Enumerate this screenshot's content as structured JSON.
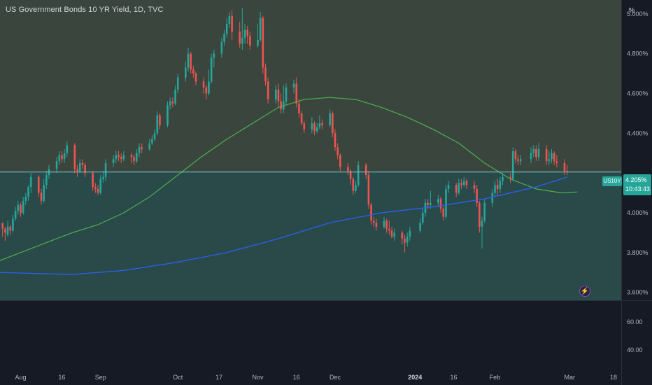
{
  "title": "US Government Bonds 10 YR Yield, 1D, TVC",
  "unit_button": "%",
  "symbol_label": "US10Y",
  "last_price_label": "4.205%",
  "countdown": "10:43:43",
  "colors": {
    "up": "#26a69a",
    "down": "#ef5350",
    "ma_short": "#4caf50",
    "ma_long": "#2962ff",
    "price_line": "#7bc7d4",
    "upper_zone": "#3a463d",
    "lower_zone": "#2a4a4a"
  },
  "icons": {
    "lightning": "lightning-icon"
  },
  "chart_data": [
    {
      "type": "candlestick",
      "title": "US Government Bonds 10 YR Yield, 1D, TVC",
      "y_ticks": [
        "5.000%",
        "4.800%",
        "4.600%",
        "4.400%",
        "4.000%",
        "3.800%",
        "3.600%"
      ],
      "ylim": [
        3.56,
        5.07
      ],
      "x_ticks": [
        "Aug",
        "16",
        "Sep",
        "Oct",
        "17",
        "Nov",
        "16",
        "Dec",
        "2024",
        "16",
        "Feb",
        "Mar",
        "18"
      ],
      "x_tick_days": [
        0,
        16,
        31,
        61,
        77,
        92,
        107,
        122,
        153,
        168,
        184,
        213,
        230
      ],
      "x_day_range": [
        -8,
        233
      ],
      "current_price": 4.205,
      "candles": [
        [
          -7,
          3.95,
          3.92,
          3.88,
          3.94
        ],
        [
          -6,
          3.92,
          3.9,
          3.86,
          3.93
        ],
        [
          -5,
          3.89,
          3.93,
          3.88,
          3.96
        ],
        [
          -4,
          3.93,
          3.91,
          3.89,
          3.94
        ],
        [
          -3,
          3.91,
          3.97,
          3.9,
          3.99
        ],
        [
          -2,
          3.97,
          4.01,
          3.96,
          4.03
        ],
        [
          -1,
          4.01,
          4.04,
          3.99,
          4.06
        ],
        [
          0,
          4.04,
          4.0,
          3.98,
          4.05
        ],
        [
          1,
          4.0,
          4.06,
          3.99,
          4.08
        ],
        [
          2,
          4.06,
          4.08,
          4.04,
          4.1
        ],
        [
          3,
          4.08,
          4.13,
          4.06,
          4.14
        ],
        [
          4,
          4.13,
          4.18,
          4.1,
          4.2
        ],
        [
          7,
          4.18,
          4.1,
          4.08,
          4.19
        ],
        [
          8,
          4.1,
          4.06,
          4.04,
          4.12
        ],
        [
          9,
          4.06,
          4.14,
          4.05,
          4.17
        ],
        [
          10,
          4.14,
          4.19,
          4.12,
          4.21
        ],
        [
          11,
          4.19,
          4.22,
          4.17,
          4.24
        ],
        [
          14,
          4.22,
          4.26,
          4.2,
          4.28
        ],
        [
          15,
          4.26,
          4.29,
          4.24,
          4.31
        ],
        [
          16,
          4.29,
          4.27,
          4.25,
          4.31
        ],
        [
          17,
          4.27,
          4.3,
          4.25,
          4.32
        ],
        [
          18,
          4.3,
          4.34,
          4.28,
          4.36
        ],
        [
          21,
          4.34,
          4.22,
          4.2,
          4.35
        ],
        [
          22,
          4.22,
          4.21,
          4.18,
          4.24
        ],
        [
          23,
          4.21,
          4.25,
          4.2,
          4.27
        ],
        [
          24,
          4.25,
          4.24,
          4.22,
          4.27
        ],
        [
          25,
          4.24,
          4.2,
          4.18,
          4.25
        ],
        [
          28,
          4.2,
          4.13,
          4.11,
          4.21
        ],
        [
          29,
          4.13,
          4.12,
          4.1,
          4.15
        ],
        [
          30,
          4.12,
          4.1,
          4.09,
          4.14
        ],
        [
          31,
          4.1,
          4.17,
          4.09,
          4.19
        ],
        [
          32,
          4.17,
          4.18,
          4.15,
          4.21
        ],
        [
          33,
          4.18,
          4.25,
          4.16,
          4.27
        ],
        [
          36,
          4.25,
          4.27,
          4.23,
          4.29
        ],
        [
          37,
          4.27,
          4.29,
          4.25,
          4.31
        ],
        [
          38,
          4.29,
          4.28,
          4.26,
          4.31
        ],
        [
          39,
          4.28,
          4.27,
          4.25,
          4.3
        ],
        [
          40,
          4.27,
          4.29,
          4.26,
          4.31
        ],
        [
          43,
          4.29,
          4.28,
          4.25,
          4.3
        ],
        [
          44,
          4.28,
          4.26,
          4.24,
          4.29
        ],
        [
          45,
          4.26,
          4.3,
          4.25,
          4.32
        ],
        [
          46,
          4.3,
          4.33,
          4.28,
          4.35
        ],
        [
          47,
          4.33,
          4.32,
          4.3,
          4.35
        ],
        [
          50,
          4.32,
          4.35,
          4.31,
          4.37
        ],
        [
          51,
          4.35,
          4.37,
          4.34,
          4.39
        ],
        [
          52,
          4.37,
          4.4,
          4.36,
          4.42
        ],
        [
          53,
          4.4,
          4.49,
          4.39,
          4.51
        ],
        [
          54,
          4.49,
          4.44,
          4.42,
          4.5
        ],
        [
          57,
          4.44,
          4.54,
          4.43,
          4.56
        ],
        [
          58,
          4.54,
          4.56,
          4.52,
          4.58
        ],
        [
          59,
          4.56,
          4.55,
          4.53,
          4.58
        ],
        [
          60,
          4.55,
          4.62,
          4.54,
          4.64
        ],
        [
          61,
          4.62,
          4.68,
          4.6,
          4.7
        ],
        [
          64,
          4.68,
          4.73,
          4.66,
          4.76
        ],
        [
          65,
          4.73,
          4.8,
          4.71,
          4.83
        ],
        [
          66,
          4.8,
          4.72,
          4.7,
          4.81
        ],
        [
          67,
          4.72,
          4.7,
          4.68,
          4.74
        ],
        [
          68,
          4.7,
          4.66,
          4.64,
          4.71
        ],
        [
          71,
          4.66,
          4.63,
          4.6,
          4.68
        ],
        [
          72,
          4.63,
          4.6,
          4.57,
          4.64
        ],
        [
          73,
          4.6,
          4.66,
          4.59,
          4.72
        ],
        [
          74,
          4.66,
          4.78,
          4.65,
          4.8
        ],
        [
          75,
          4.78,
          4.8,
          4.73,
          4.82
        ],
        [
          78,
          4.8,
          4.86,
          4.78,
          4.88
        ],
        [
          79,
          4.86,
          4.9,
          4.84,
          4.92
        ],
        [
          80,
          4.9,
          4.95,
          4.88,
          4.98
        ],
        [
          81,
          4.95,
          4.99,
          4.93,
          5.01
        ],
        [
          82,
          4.99,
          4.91,
          4.87,
          5.02
        ],
        [
          85,
          4.91,
          4.85,
          4.83,
          4.96
        ],
        [
          86,
          4.85,
          4.88,
          4.82,
          5.03
        ],
        [
          87,
          4.88,
          4.92,
          4.85,
          4.95
        ],
        [
          88,
          4.92,
          4.89,
          4.85,
          4.94
        ],
        [
          89,
          4.89,
          4.84,
          4.82,
          4.91
        ],
        [
          92,
          4.84,
          4.87,
          4.83,
          4.95
        ],
        [
          93,
          4.87,
          4.98,
          4.86,
          5.01
        ],
        [
          94,
          4.98,
          4.73,
          4.7,
          4.99
        ],
        [
          95,
          4.73,
          4.66,
          4.64,
          4.75
        ],
        [
          96,
          4.66,
          4.57,
          4.55,
          4.68
        ],
        [
          99,
          4.57,
          4.62,
          4.55,
          4.64
        ],
        [
          100,
          4.62,
          4.56,
          4.53,
          4.65
        ],
        [
          101,
          4.56,
          4.52,
          4.5,
          4.6
        ],
        [
          102,
          4.52,
          4.56,
          4.5,
          4.64
        ],
        [
          103,
          4.56,
          4.63,
          4.54,
          4.65
        ],
        [
          106,
          4.63,
          4.65,
          4.6,
          4.67
        ],
        [
          107,
          4.65,
          4.55,
          4.53,
          4.68
        ],
        [
          108,
          4.55,
          4.5,
          4.48,
          4.57
        ],
        [
          109,
          4.5,
          4.45,
          4.44,
          4.51
        ],
        [
          110,
          4.45,
          4.42,
          4.4,
          4.46
        ],
        [
          113,
          4.42,
          4.45,
          4.4,
          4.48
        ],
        [
          114,
          4.45,
          4.41,
          4.39,
          4.46
        ],
        [
          115,
          4.41,
          4.43,
          4.4,
          4.45
        ],
        [
          116,
          4.43,
          4.45,
          4.42,
          4.49
        ],
        [
          117,
          4.45,
          4.44,
          4.42,
          4.47
        ],
        [
          120,
          4.44,
          4.5,
          4.43,
          4.52
        ],
        [
          121,
          4.5,
          4.4,
          4.38,
          4.51
        ],
        [
          122,
          4.4,
          4.33,
          4.31,
          4.42
        ],
        [
          123,
          4.33,
          4.29,
          4.27,
          4.35
        ],
        [
          124,
          4.29,
          4.23,
          4.21,
          4.3
        ],
        [
          127,
          4.23,
          4.21,
          4.19,
          4.25
        ],
        [
          128,
          4.21,
          4.17,
          4.14,
          4.22
        ],
        [
          129,
          4.17,
          4.11,
          4.09,
          4.18
        ],
        [
          130,
          4.11,
          4.14,
          4.1,
          4.16
        ],
        [
          131,
          4.14,
          4.24,
          4.13,
          4.26
        ],
        [
          134,
          4.24,
          4.19,
          4.17,
          4.25
        ],
        [
          135,
          4.19,
          4.04,
          4.02,
          4.21
        ],
        [
          136,
          4.04,
          3.96,
          3.94,
          4.05
        ],
        [
          137,
          3.96,
          3.95,
          3.93,
          3.98
        ],
        [
          138,
          3.95,
          3.93,
          3.91,
          3.97
        ],
        [
          141,
          3.93,
          3.96,
          3.92,
          3.98
        ],
        [
          142,
          3.96,
          3.92,
          3.9,
          3.97
        ],
        [
          143,
          3.92,
          3.91,
          3.89,
          3.96
        ],
        [
          144,
          3.91,
          3.88,
          3.87,
          3.93
        ],
        [
          145,
          3.88,
          3.9,
          3.86,
          3.92
        ],
        [
          148,
          3.9,
          3.87,
          3.84,
          3.91
        ],
        [
          149,
          3.87,
          3.85,
          3.8,
          3.89
        ],
        [
          150,
          3.85,
          3.88,
          3.83,
          3.9
        ],
        [
          151,
          3.88,
          3.91,
          3.86,
          3.93
        ],
        [
          155,
          3.91,
          3.95,
          3.9,
          3.97
        ],
        [
          156,
          3.95,
          4.0,
          3.94,
          4.02
        ],
        [
          157,
          4.0,
          4.05,
          3.98,
          4.07
        ],
        [
          158,
          4.05,
          4.04,
          4.02,
          4.07
        ],
        [
          159,
          4.04,
          4.05,
          4.02,
          4.11
        ],
        [
          162,
          4.05,
          4.07,
          4.03,
          4.09
        ],
        [
          163,
          4.07,
          4.02,
          4.0,
          4.08
        ],
        [
          164,
          4.02,
          3.98,
          3.96,
          4.03
        ],
        [
          165,
          3.98,
          4.12,
          3.97,
          4.14
        ],
        [
          166,
          4.12,
          4.14,
          4.1,
          4.16
        ],
        [
          169,
          4.14,
          4.1,
          4.08,
          4.15
        ],
        [
          170,
          4.1,
          4.15,
          4.09,
          4.17
        ],
        [
          171,
          4.15,
          4.14,
          4.12,
          4.17
        ],
        [
          172,
          4.14,
          4.16,
          4.13,
          4.18
        ],
        [
          173,
          4.16,
          4.14,
          4.12,
          4.17
        ],
        [
          176,
          4.14,
          4.12,
          4.1,
          4.16
        ],
        [
          177,
          4.12,
          4.05,
          4.03,
          4.14
        ],
        [
          178,
          4.05,
          3.93,
          3.9,
          4.06
        ],
        [
          179,
          3.93,
          3.96,
          3.82,
          3.98
        ],
        [
          180,
          3.96,
          4.05,
          3.95,
          4.07
        ],
        [
          183,
          4.05,
          4.1,
          4.03,
          4.12
        ],
        [
          184,
          4.1,
          4.14,
          4.08,
          4.16
        ],
        [
          185,
          4.14,
          4.12,
          4.09,
          4.17
        ],
        [
          186,
          4.12,
          4.16,
          4.1,
          4.18
        ],
        [
          187,
          4.16,
          4.18,
          4.14,
          4.2
        ],
        [
          190,
          4.18,
          4.17,
          4.15,
          4.2
        ],
        [
          191,
          4.17,
          4.31,
          4.16,
          4.33
        ],
        [
          192,
          4.31,
          4.27,
          4.25,
          4.32
        ],
        [
          193,
          4.27,
          4.26,
          4.24,
          4.29
        ],
        [
          194,
          4.26,
          4.27,
          4.24,
          4.29
        ],
        [
          198,
          4.27,
          4.3,
          4.25,
          4.33
        ],
        [
          199,
          4.3,
          4.32,
          4.28,
          4.34
        ],
        [
          200,
          4.32,
          4.28,
          4.26,
          4.34
        ],
        [
          201,
          4.28,
          4.32,
          4.26,
          4.35
        ],
        [
          204,
          4.32,
          4.26,
          4.24,
          4.34
        ],
        [
          205,
          4.26,
          4.27,
          4.24,
          4.31
        ],
        [
          206,
          4.27,
          4.3,
          4.25,
          4.32
        ],
        [
          207,
          4.3,
          4.26,
          4.24,
          4.31
        ],
        [
          208,
          4.26,
          4.25,
          4.23,
          4.29
        ],
        [
          211,
          4.25,
          4.21,
          4.19,
          4.27
        ],
        [
          212,
          4.21,
          4.205,
          4.19,
          4.24
        ]
      ],
      "series": [
        {
          "name": "",
          "type": "line",
          "color": "#4caf50",
          "points": [
            [
              -8,
              3.76
            ],
            [
              0,
              3.8
            ],
            [
              10,
              3.85
            ],
            [
              20,
              3.9
            ],
            [
              30,
              3.94
            ],
            [
              40,
              4.0
            ],
            [
              50,
              4.08
            ],
            [
              60,
              4.18
            ],
            [
              70,
              4.28
            ],
            [
              80,
              4.37
            ],
            [
              90,
              4.45
            ],
            [
              100,
              4.53
            ],
            [
              110,
              4.57
            ],
            [
              120,
              4.58
            ],
            [
              130,
              4.57
            ],
            [
              140,
              4.53
            ],
            [
              150,
              4.48
            ],
            [
              160,
              4.42
            ],
            [
              170,
              4.35
            ],
            [
              180,
              4.25
            ],
            [
              190,
              4.17
            ],
            [
              200,
              4.12
            ],
            [
              210,
              4.1
            ],
            [
              216,
              4.105
            ]
          ]
        },
        {
          "name": "",
          "type": "line",
          "color": "#2962ff",
          "points": [
            [
              -8,
              3.7
            ],
            [
              20,
              3.69
            ],
            [
              40,
              3.71
            ],
            [
              60,
              3.75
            ],
            [
              80,
              3.8
            ],
            [
              100,
              3.87
            ],
            [
              120,
              3.95
            ],
            [
              140,
              4.0
            ],
            [
              160,
              4.03
            ],
            [
              180,
              4.07
            ],
            [
              200,
              4.13
            ],
            [
              212,
              4.18
            ]
          ]
        }
      ]
    },
    {
      "type": "line",
      "title": "",
      "y_ticks": [
        "60.00",
        "40.00"
      ],
      "ylim": [
        25,
        75
      ],
      "series": []
    }
  ]
}
